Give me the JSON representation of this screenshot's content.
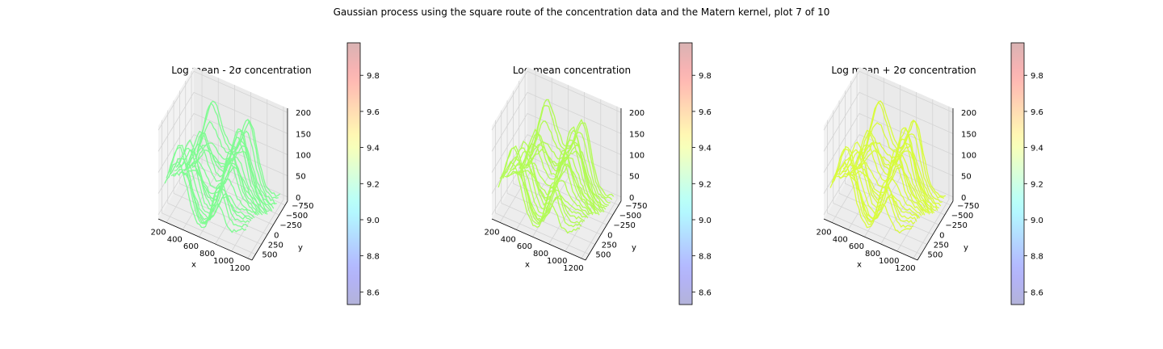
{
  "figure": {
    "title": "Gaussian process using the square route of the concentration data and the Matern kernel, plot 7 of 10"
  },
  "colors": {
    "minus2sigma_points": "#6eff83",
    "mean_points": "#a9ff3b",
    "plus2sigma_points": "#d6ff21",
    "pane_floor": "#ededed",
    "pane_wall": "#f2f2f2",
    "grid": "#d4d4d4"
  },
  "colormap": {
    "name": "jet",
    "alpha": 0.3,
    "range": [
      8.53,
      9.98
    ],
    "ticks": [
      "8.6",
      "8.8",
      "9.0",
      "9.2",
      "9.4",
      "9.6",
      "9.8"
    ]
  },
  "chart_data": [
    {
      "type": "scatter3d",
      "title": "Log mean - 2σ concentration",
      "xlabel": "x",
      "ylabel": "y",
      "zlabel": "",
      "x_ticks": [
        "200",
        "400",
        "600",
        "800",
        "1000",
        "1200"
      ],
      "y_ticks": [
        "−750",
        "−500",
        "−250",
        "0",
        "250",
        "500"
      ],
      "z_ticks": [
        "0",
        "50",
        "100",
        "150",
        "200"
      ],
      "xlim": [
        100,
        1250
      ],
      "ylim": [
        -850,
        650
      ],
      "zlim": [
        -10,
        210
      ],
      "color_value": 9.28
    },
    {
      "type": "scatter3d",
      "title": "Log mean concentration",
      "xlabel": "x",
      "ylabel": "y",
      "zlabel": "",
      "x_ticks": [
        "200",
        "400",
        "600",
        "800",
        "1000",
        "1200"
      ],
      "y_ticks": [
        "−750",
        "−500",
        "−250",
        "0",
        "250",
        "500"
      ],
      "z_ticks": [
        "0",
        "50",
        "100",
        "150",
        "200"
      ],
      "xlim": [
        100,
        1250
      ],
      "ylim": [
        -850,
        650
      ],
      "zlim": [
        -10,
        210
      ],
      "color_value": 9.42
    },
    {
      "type": "scatter3d",
      "title": "Log mean + 2σ concentration",
      "xlabel": "x",
      "ylabel": "y",
      "zlabel": "",
      "x_ticks": [
        "200",
        "400",
        "600",
        "800",
        "1000",
        "1200"
      ],
      "y_ticks": [
        "−750",
        "−500",
        "−250",
        "0",
        "250",
        "500"
      ],
      "z_ticks": [
        "0",
        "50",
        "100",
        "150",
        "200"
      ],
      "xlim": [
        100,
        1250
      ],
      "ylim": [
        -850,
        650
      ],
      "zlim": [
        -10,
        210
      ],
      "color_value": 9.5
    }
  ]
}
